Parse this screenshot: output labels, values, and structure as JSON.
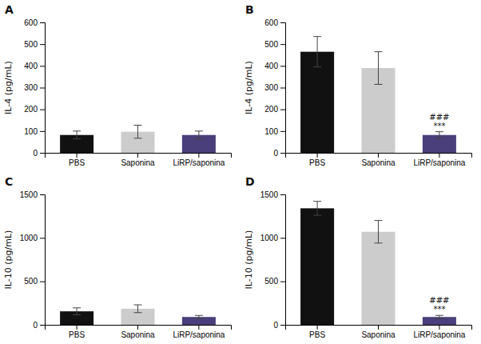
{
  "chart_data": [
    {
      "type": "bar",
      "title": "A",
      "ylabel": "IL-4 (pg/mL)",
      "categories": [
        "PBS",
        "Saponina",
        "LiRP/saponina"
      ],
      "values": [
        82,
        97,
        82
      ],
      "errors": [
        18,
        30,
        18
      ],
      "colors": [
        "#111111",
        "#cccccc",
        "#4a3f7a"
      ],
      "ylim": [
        0,
        600
      ],
      "yticks": [
        0,
        100,
        200,
        300,
        400,
        500,
        600
      ],
      "grid": false,
      "annotations": []
    },
    {
      "type": "bar",
      "title": "B",
      "ylabel": "IL-4 (pg/mL)",
      "categories": [
        "PBS",
        "Saponina",
        "LiRP/saponina"
      ],
      "values": [
        465,
        390,
        82
      ],
      "errors": [
        70,
        75,
        15
      ],
      "colors": [
        "#111111",
        "#cccccc",
        "#4a3f7a"
      ],
      "ylim": [
        0,
        600
      ],
      "yticks": [
        0,
        100,
        200,
        300,
        400,
        500,
        600
      ],
      "grid": false,
      "annotations": [
        {
          "category": "LiRP/saponina",
          "text": "***"
        },
        {
          "category": "LiRP/saponina",
          "text": "###"
        }
      ]
    },
    {
      "type": "bar",
      "title": "C",
      "ylabel": "IL-10 (pg/mL)",
      "categories": [
        "PBS",
        "Saponina",
        "LiRP/saponina"
      ],
      "values": [
        155,
        185,
        90
      ],
      "errors": [
        40,
        45,
        18
      ],
      "colors": [
        "#111111",
        "#cccccc",
        "#4a3f7a"
      ],
      "ylim": [
        0,
        1500
      ],
      "yticks": [
        0,
        500,
        1000,
        1500
      ],
      "grid": false,
      "annotations": []
    },
    {
      "type": "bar",
      "title": "D",
      "ylabel": "IL-10 (pg/mL)",
      "categories": [
        "PBS",
        "Saponina",
        "LiRP/saponina"
      ],
      "values": [
        1340,
        1070,
        90
      ],
      "errors": [
        80,
        130,
        18
      ],
      "colors": [
        "#111111",
        "#cccccc",
        "#4a3f7a"
      ],
      "ylim": [
        0,
        1500
      ],
      "yticks": [
        0,
        500,
        1000,
        1500
      ],
      "grid": false,
      "annotations": [
        {
          "category": "LiRP/saponina",
          "text": "***"
        },
        {
          "category": "LiRP/saponina",
          "text": "###"
        }
      ]
    }
  ]
}
